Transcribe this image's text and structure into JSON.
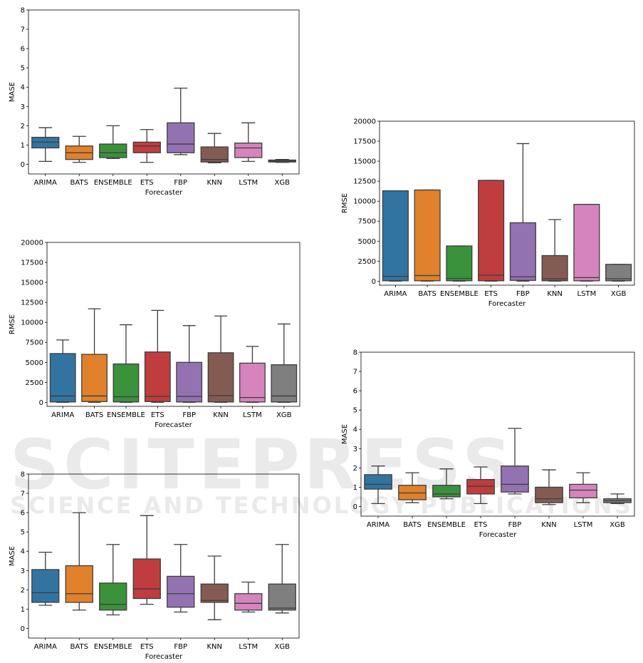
{
  "watermark": {
    "main": "SCITEPRESS",
    "sub": "SCIENCE AND TECHNOLOGY PUBLICATIONS"
  },
  "colors": {
    "ARIMA": "#3274a1",
    "BATS": "#e1812c",
    "ENSEMBLE": "#3a923a",
    "ETS": "#c03d3e",
    "FBP": "#9372b2",
    "KNN": "#845b53",
    "LSTM": "#d684bd",
    "XGB": "#7f7f7f"
  },
  "chart_data": [
    {
      "type": "box",
      "xlabel": "Forecaster",
      "ylabel": "MASE",
      "categories": [
        "ARIMA",
        "BATS",
        "ENSEMBLE",
        "ETS",
        "FBP",
        "KNN",
        "LSTM",
        "XGB"
      ],
      "ylim": [
        -0.5,
        8
      ],
      "yticks": [
        "0",
        "1",
        "2",
        "3",
        "4",
        "5",
        "6",
        "7",
        "8"
      ],
      "boxes": [
        {
          "whislo": 0.15,
          "q1": 0.85,
          "med": 1.15,
          "q3": 1.4,
          "whishi": 1.9
        },
        {
          "whislo": 0.1,
          "q1": 0.25,
          "med": 0.6,
          "q3": 0.95,
          "whishi": 1.45
        },
        {
          "whislo": 0.3,
          "q1": 0.35,
          "med": 0.6,
          "q3": 1.05,
          "whishi": 2.0
        },
        {
          "whislo": 0.1,
          "q1": 0.6,
          "med": 0.95,
          "q3": 1.15,
          "whishi": 1.8
        },
        {
          "whislo": 0.5,
          "q1": 0.6,
          "med": 1.05,
          "q3": 2.15,
          "whishi": 3.95
        },
        {
          "whislo": 0.08,
          "q1": 0.12,
          "med": 0.25,
          "q3": 0.9,
          "whishi": 1.6
        },
        {
          "whislo": 0.15,
          "q1": 0.35,
          "med": 0.85,
          "q3": 1.1,
          "whishi": 2.15
        },
        {
          "whislo": 0.1,
          "q1": 0.12,
          "med": 0.17,
          "q3": 0.22,
          "whishi": 0.25
        }
      ]
    },
    {
      "type": "box",
      "xlabel": "Forecaster",
      "ylabel": "RMSE",
      "categories": [
        "ARIMA",
        "BATS",
        "ENSEMBLE",
        "ETS",
        "FBP",
        "KNN",
        "LSTM",
        "XGB"
      ],
      "ylim": [
        -500,
        20000
      ],
      "yticks": [
        "0",
        "2500",
        "5000",
        "7500",
        "10000",
        "12500",
        "15000",
        "17500",
        "20000"
      ],
      "boxes": [
        {
          "whislo": 0,
          "q1": 50,
          "med": 600,
          "q3": 11300,
          "whishi": 11300
        },
        {
          "whislo": 0,
          "q1": 50,
          "med": 700,
          "q3": 11400,
          "whishi": 11400
        },
        {
          "whislo": 0,
          "q1": 50,
          "med": 350,
          "q3": 4400,
          "whishi": 4400
        },
        {
          "whislo": 0,
          "q1": 50,
          "med": 750,
          "q3": 12600,
          "whishi": 12600
        },
        {
          "whislo": 0,
          "q1": 100,
          "med": 550,
          "q3": 7300,
          "whishi": 17200
        },
        {
          "whislo": 0,
          "q1": 50,
          "med": 300,
          "q3": 3200,
          "whishi": 7700
        },
        {
          "whislo": 0,
          "q1": 50,
          "med": 450,
          "q3": 9600,
          "whishi": 9600
        },
        {
          "whislo": 0,
          "q1": 50,
          "med": 300,
          "q3": 2100,
          "whishi": 2100
        }
      ]
    },
    {
      "type": "box",
      "xlabel": "Forecaster",
      "ylabel": "RMSE",
      "categories": [
        "ARIMA",
        "BATS",
        "ENSEMBLE",
        "ETS",
        "FBP",
        "KNN",
        "LSTM",
        "XGB"
      ],
      "ylim": [
        -500,
        20000
      ],
      "yticks": [
        "0",
        "2500",
        "5000",
        "7500",
        "10000",
        "12500",
        "15000",
        "17500",
        "20000"
      ],
      "boxes": [
        {
          "whislo": 0,
          "q1": 50,
          "med": 800,
          "q3": 6100,
          "whishi": 7800
        },
        {
          "whislo": 0,
          "q1": 100,
          "med": 800,
          "q3": 6000,
          "whishi": 11700
        },
        {
          "whislo": 0,
          "q1": 50,
          "med": 700,
          "q3": 4800,
          "whishi": 9700
        },
        {
          "whislo": 0,
          "q1": 100,
          "med": 750,
          "q3": 6300,
          "whishi": 11500
        },
        {
          "whislo": 0,
          "q1": 50,
          "med": 750,
          "q3": 5000,
          "whishi": 9600
        },
        {
          "whislo": 0,
          "q1": 50,
          "med": 850,
          "q3": 6200,
          "whishi": 10800
        },
        {
          "whislo": 0,
          "q1": 50,
          "med": 600,
          "q3": 4900,
          "whishi": 7000
        },
        {
          "whislo": 0,
          "q1": 50,
          "med": 800,
          "q3": 4700,
          "whishi": 9800
        }
      ]
    },
    {
      "type": "box",
      "xlabel": "Forecaster",
      "ylabel": "MASE",
      "categories": [
        "ARIMA",
        "BATS",
        "ENSEMBLE",
        "ETS",
        "FBP",
        "KNN",
        "LSTM",
        "XGB"
      ],
      "ylim": [
        -0.5,
        8
      ],
      "yticks": [
        "0",
        "1",
        "2",
        "3",
        "4",
        "5",
        "6",
        "7",
        "8"
      ],
      "boxes": [
        {
          "whislo": 0.15,
          "q1": 0.9,
          "med": 1.15,
          "q3": 1.65,
          "whishi": 2.1
        },
        {
          "whislo": 0.2,
          "q1": 0.35,
          "med": 0.7,
          "q3": 1.1,
          "whishi": 1.75
        },
        {
          "whislo": 0.4,
          "q1": 0.5,
          "med": 0.65,
          "q3": 1.1,
          "whishi": 1.95
        },
        {
          "whislo": 0.15,
          "q1": 0.65,
          "med": 1.05,
          "q3": 1.4,
          "whishi": 2.05
        },
        {
          "whislo": 0.65,
          "q1": 0.75,
          "med": 1.15,
          "q3": 2.1,
          "whishi": 4.05
        },
        {
          "whislo": 0.1,
          "q1": 0.2,
          "med": 0.4,
          "q3": 1.0,
          "whishi": 1.9
        },
        {
          "whislo": 0.2,
          "q1": 0.45,
          "med": 0.85,
          "q3": 1.15,
          "whishi": 1.75
        },
        {
          "whislo": 0.15,
          "q1": 0.2,
          "med": 0.3,
          "q3": 0.4,
          "whishi": 0.65
        }
      ]
    },
    {
      "type": "box",
      "xlabel": "Forecaster",
      "ylabel": "MASE",
      "categories": [
        "ARIMA",
        "BATS",
        "ENSEMBLE",
        "ETS",
        "FBP",
        "KNN",
        "LSTM",
        "XGB"
      ],
      "ylim": [
        -0.5,
        8
      ],
      "yticks": [
        "0",
        "1",
        "2",
        "3",
        "4",
        "5",
        "6",
        "7",
        "8"
      ],
      "boxes": [
        {
          "whislo": 1.2,
          "q1": 1.35,
          "med": 1.85,
          "q3": 3.05,
          "whishi": 3.95
        },
        {
          "whislo": 0.95,
          "q1": 1.35,
          "med": 1.8,
          "q3": 3.25,
          "whishi": 6.0
        },
        {
          "whislo": 0.7,
          "q1": 0.95,
          "med": 1.25,
          "q3": 2.35,
          "whishi": 4.35
        },
        {
          "whislo": 1.25,
          "q1": 1.55,
          "med": 2.05,
          "q3": 3.6,
          "whishi": 5.85
        },
        {
          "whislo": 0.85,
          "q1": 1.1,
          "med": 1.8,
          "q3": 2.7,
          "whishi": 4.35
        },
        {
          "whislo": 0.45,
          "q1": 1.35,
          "med": 1.45,
          "q3": 2.3,
          "whishi": 3.75
        },
        {
          "whislo": 0.85,
          "q1": 0.95,
          "med": 1.3,
          "q3": 1.8,
          "whishi": 2.4
        },
        {
          "whislo": 0.8,
          "q1": 0.95,
          "med": 1.05,
          "q3": 2.3,
          "whishi": 4.35
        }
      ]
    }
  ]
}
